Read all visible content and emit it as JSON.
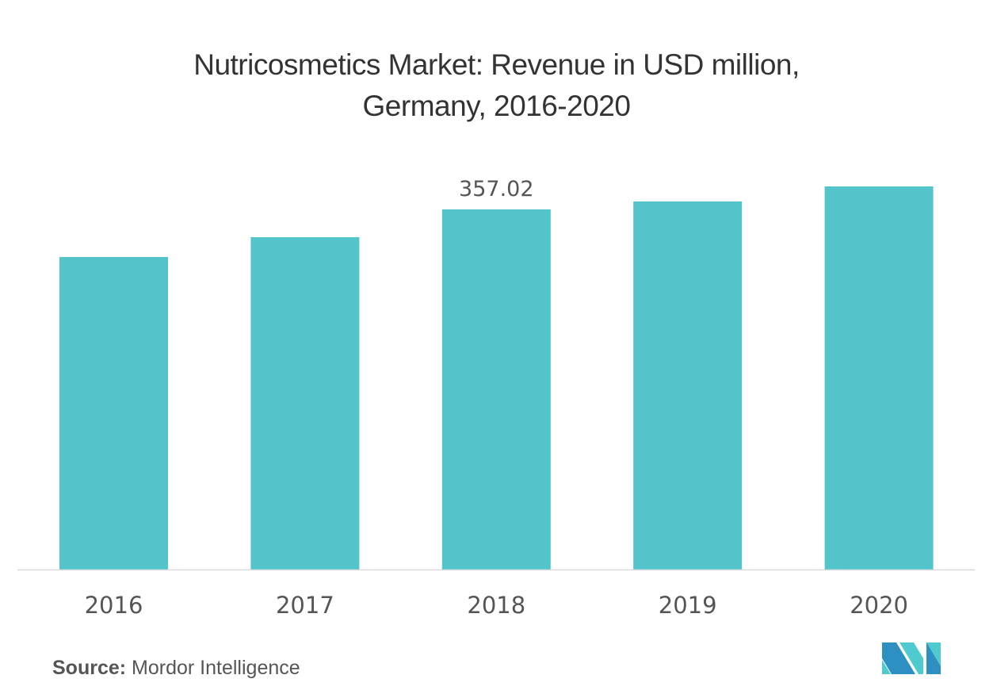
{
  "chart_data": {
    "type": "bar",
    "title": "Nutricosmetics Market: Revenue in USD million, Germany, 2016-2020",
    "title_lines": [
      "Nutricosmetics Market: Revenue in USD million,",
      "Germany, 2016-2020"
    ],
    "categories": [
      "2016",
      "2017",
      "2018",
      "2019",
      "2020"
    ],
    "values": [
      309.8,
      329.5,
      357.02,
      364.9,
      379.8
    ],
    "data_labels": [
      "",
      "",
      "357.02",
      "",
      ""
    ],
    "xlabel": "",
    "ylabel": "",
    "ylim": [
      0,
      380
    ],
    "grid": false,
    "bar_color": "#52C4CA",
    "axis_color": "#D9D9D9"
  },
  "source": {
    "label": "Source:",
    "value": "Mordor Intelligence"
  },
  "logo": {
    "colors": [
      "#2E8FC2",
      "#4FCBCF"
    ]
  }
}
